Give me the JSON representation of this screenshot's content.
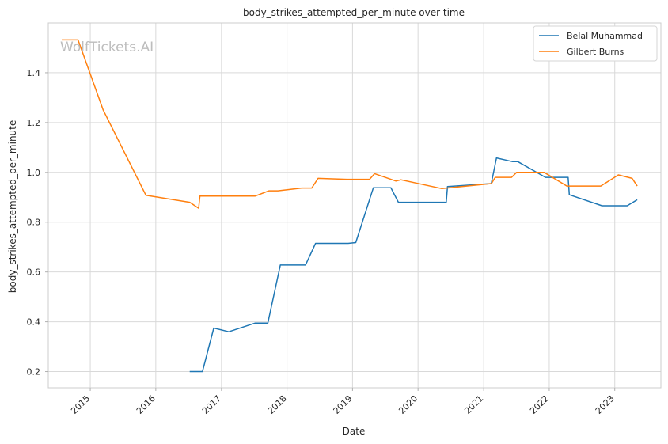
{
  "chart_data": {
    "type": "line",
    "title": "body_strikes_attempted_per_minute over time",
    "xlabel": "Date",
    "ylabel": "body_strikes_attempted_per_minute",
    "watermark": "WolfTickets.AI",
    "grid": true,
    "legend_position": "top-right",
    "xlim": [
      "2014-05-12",
      "2023-09-15"
    ],
    "ylim": [
      0.135,
      1.6
    ],
    "x_ticks": [
      "2015",
      "2016",
      "2017",
      "2018",
      "2019",
      "2020",
      "2021",
      "2022",
      "2023"
    ],
    "y_ticks": [
      "0.2",
      "0.4",
      "0.6",
      "0.8",
      "1.0",
      "1.2",
      "1.4"
    ],
    "series": [
      {
        "name": "Belal Muhammad",
        "color": "#1f77b4",
        "points": [
          [
            "2016-07-08",
            0.2
          ],
          [
            "2016-09-17",
            0.2
          ],
          [
            "2016-11-19",
            0.375
          ],
          [
            "2017-02-11",
            0.36
          ],
          [
            "2017-07-08",
            0.395
          ],
          [
            "2017-09-16",
            0.395
          ],
          [
            "2017-11-25",
            0.628
          ],
          [
            "2018-04-14",
            0.628
          ],
          [
            "2018-06-09",
            0.715
          ],
          [
            "2018-12-08",
            0.715
          ],
          [
            "2019-01-19",
            0.718
          ],
          [
            "2019-04-27",
            0.938
          ],
          [
            "2019-08-03",
            0.938
          ],
          [
            "2019-09-14",
            0.88
          ],
          [
            "2020-06-06",
            0.88
          ],
          [
            "2020-06-13",
            0.943
          ],
          [
            "2021-02-12",
            0.955
          ],
          [
            "2021-03-13",
            1.058
          ],
          [
            "2021-06-11",
            1.043
          ],
          [
            "2021-07-10",
            1.043
          ],
          [
            "2021-12-11",
            0.98
          ],
          [
            "2022-04-16",
            0.98
          ],
          [
            "2022-04-23",
            0.91
          ],
          [
            "2022-10-22",
            0.866
          ],
          [
            "2023-03-11",
            0.866
          ],
          [
            "2023-05-06",
            0.89
          ]
        ]
      },
      {
        "name": "Gilbert Burns",
        "color": "#ff7f0e",
        "points": [
          [
            "2014-07-26",
            1.532
          ],
          [
            "2014-10-25",
            1.532
          ],
          [
            "2015-03-14",
            1.25
          ],
          [
            "2015-11-07",
            0.908
          ],
          [
            "2016-07-08",
            0.88
          ],
          [
            "2016-08-27",
            0.856
          ],
          [
            "2016-09-03",
            0.905
          ],
          [
            "2017-07-08",
            0.905
          ],
          [
            "2017-09-23",
            0.926
          ],
          [
            "2017-11-11",
            0.926
          ],
          [
            "2018-03-24",
            0.937
          ],
          [
            "2018-05-19",
            0.937
          ],
          [
            "2018-06-23",
            0.976
          ],
          [
            "2018-12-01",
            0.972
          ],
          [
            "2019-04-06",
            0.972
          ],
          [
            "2019-05-04",
            0.995
          ],
          [
            "2019-08-31",
            0.965
          ],
          [
            "2019-09-28",
            0.97
          ],
          [
            "2020-05-13",
            0.935
          ],
          [
            "2021-02-13",
            0.955
          ],
          [
            "2021-03-06",
            0.98
          ],
          [
            "2021-06-05",
            0.98
          ],
          [
            "2021-07-03",
            1.0
          ],
          [
            "2021-12-04",
            1.0
          ],
          [
            "2022-04-09",
            0.945
          ],
          [
            "2022-10-15",
            0.945
          ],
          [
            "2023-01-21",
            0.99
          ],
          [
            "2023-04-08",
            0.976
          ],
          [
            "2023-05-06",
            0.945
          ]
        ]
      }
    ]
  }
}
